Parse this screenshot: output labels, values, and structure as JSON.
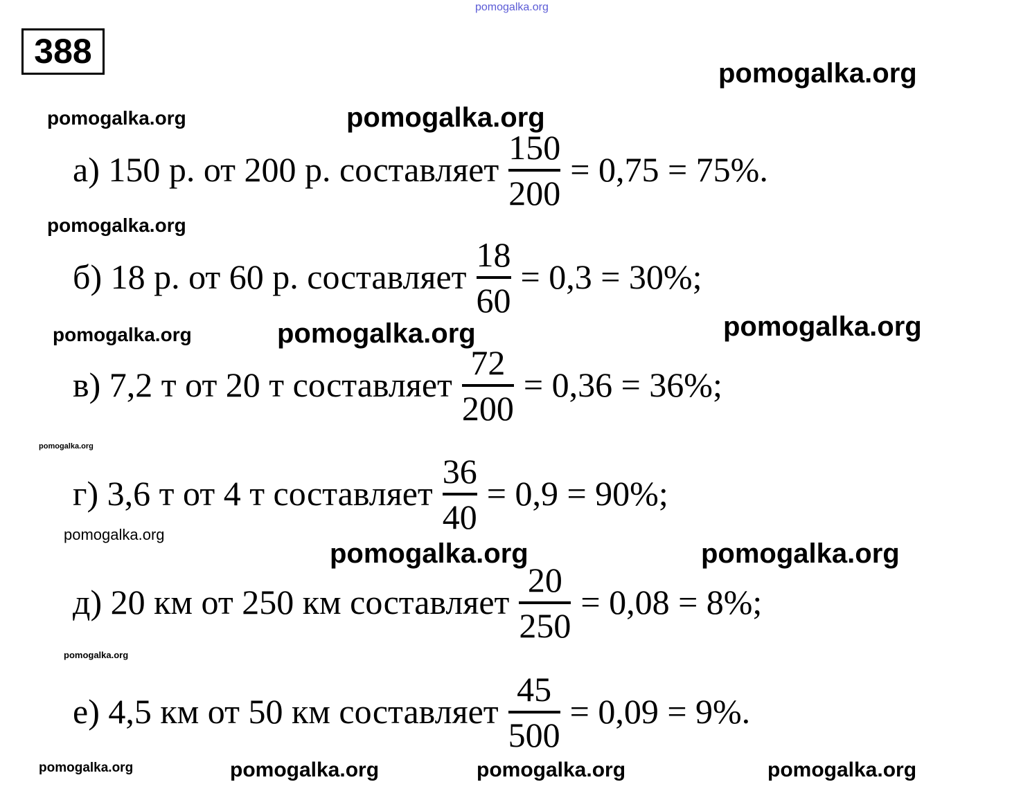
{
  "problem_number": "388",
  "rows": [
    {
      "text": "а) 150 р. от 200 р. составляет",
      "numerator": "150",
      "denominator": "200",
      "result": "= 0,75 = 75%."
    },
    {
      "text": "б) 18 р. от 60 р. составляет",
      "numerator": "18",
      "denominator": "60",
      "result": "= 0,3 = 30%;"
    },
    {
      "text": "в) 7,2 т от 20 т составляет",
      "numerator": "72",
      "denominator": "200",
      "result": "= 0,36 = 36%;"
    },
    {
      "text": "г) 3,6 т от 4 т составляет",
      "numerator": "36",
      "denominator": "40",
      "result": "= 0,9 = 90%;"
    },
    {
      "text": "д) 20 км от 250 км составляет",
      "numerator": "20",
      "denominator": "250",
      "result": "= 0,08 = 8%;"
    },
    {
      "text": "е) 4,5 км от 50 км составляет",
      "numerator": "45",
      "denominator": "500",
      "result": "= 0,09 = 9%."
    }
  ],
  "watermarks": [
    "pomogalka.org",
    "pomogalka.org",
    "pomogalka.org",
    "pomogalka.org",
    "pomogalka.org",
    "pomogalka.org",
    "pomogalka.org",
    "pomogalka.org",
    "pomogalka.org",
    "pomogalka.org",
    "pomogalka.org",
    "pomogalka.org",
    "pomogalka.org",
    "pomogalka.org",
    "pomogalka.org",
    "pomogalka.org",
    "pomogalka.org"
  ],
  "colors": {
    "top_watermark": "#5b5bd6"
  }
}
